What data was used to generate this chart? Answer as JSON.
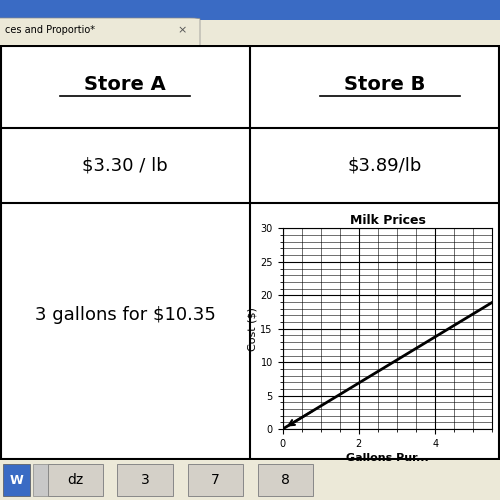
{
  "title_browser": "ces and Proportio*",
  "store_a_label": "Store A",
  "store_b_label": "Store B",
  "store_a_price": "$3.30 / lb",
  "store_b_price": "$3.89/lb",
  "store_a_bottom": "3 gallons for $10.35",
  "chart_title": "Milk Prices",
  "xlabel": "Gallons Pur...",
  "ylabel": "Cost ($)",
  "x_ticks": [
    0,
    2,
    4
  ],
  "y_ticks": [
    0,
    5,
    10,
    15,
    20,
    25,
    30
  ],
  "line_slope": 3.45,
  "x_range": [
    0,
    5.5
  ],
  "y_range": [
    0,
    30
  ],
  "taskbar_items": [
    "dz",
    "3",
    "7",
    "8"
  ]
}
